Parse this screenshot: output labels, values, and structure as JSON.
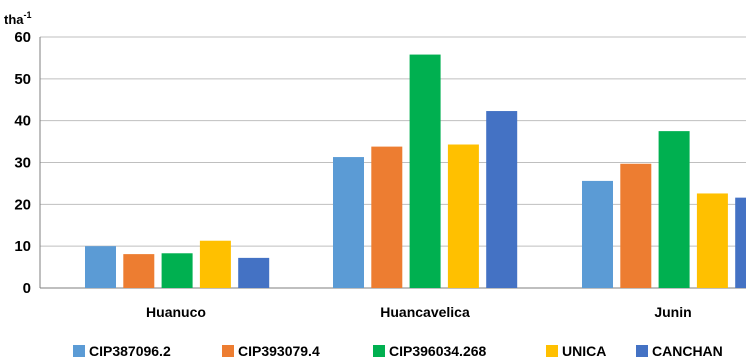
{
  "chart_data": {
    "type": "bar",
    "title": "",
    "xlabel": "",
    "ylabel": "",
    "y_unit_label": "tha",
    "y_unit_superscript": "-1",
    "ylim": [
      0,
      60
    ],
    "yticks": [
      0,
      10,
      20,
      30,
      40,
      50,
      60
    ],
    "grid": true,
    "legend_position": "bottom",
    "categories": [
      "Huanuco",
      "Huancavelica",
      "Junin"
    ],
    "series": [
      {
        "name": "CIP387096.2",
        "color": "#5b9bd5",
        "values": [
          10.0,
          31.3,
          25.6
        ]
      },
      {
        "name": "CIP393079.4",
        "color": "#ed7d31",
        "values": [
          8.1,
          33.8,
          29.7
        ]
      },
      {
        "name": "CIP396034.268",
        "color": "#00b050",
        "values": [
          8.3,
          55.8,
          37.5
        ]
      },
      {
        "name": "UNICA",
        "color": "#ffc000",
        "values": [
          11.3,
          34.3,
          22.6
        ]
      },
      {
        "name": "CANCHAN",
        "color": "#4472c4",
        "values": [
          7.2,
          42.3,
          21.6
        ]
      }
    ]
  }
}
